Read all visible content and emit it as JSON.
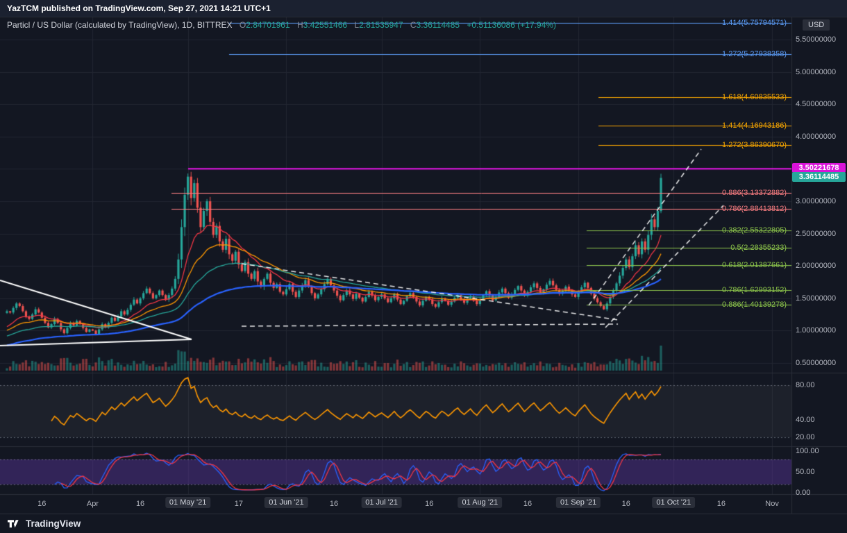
{
  "publish_bar": {
    "text": "YazTCM published on TradingView.com, Sep 27, 2021 14:21 UTC+1"
  },
  "header": {
    "symbol": "Particl / US Dollar (calculated by TradingView), 1D, BITTREX",
    "ohlc": {
      "o_label": "O",
      "o": "2.84701961",
      "h_label": "H",
      "h": "3.42551466",
      "l_label": "L",
      "l": "2.81535947",
      "c_label": "C",
      "c": "3.36114485",
      "change": "+0.51136086 (+17.94%)"
    }
  },
  "price_scale": {
    "currency": "USD",
    "ticks": [
      "5.50000000",
      "5.00000000",
      "4.50000000",
      "4.00000000",
      "3.50000000",
      "3.00000000",
      "2.50000000",
      "2.00000000",
      "1.50000000",
      "1.00000000",
      "0.50000000"
    ],
    "price_tags": [
      {
        "text": "3.50221678",
        "value": 3.50221678,
        "style": "magenta"
      },
      {
        "text": "3.36114485",
        "value": 3.36114485,
        "style": "teal"
      }
    ]
  },
  "fib_levels": [
    {
      "label": "1.414(5.75794571)",
      "value": 5.75794571,
      "group": "blue"
    },
    {
      "label": "1.272(5.27938358)",
      "value": 5.27938358,
      "group": "blue"
    },
    {
      "label": "1.618(4.60835533)",
      "value": 4.60835533,
      "group": "orange"
    },
    {
      "label": "1.414(4.16943186)",
      "value": 4.16943186,
      "group": "orange"
    },
    {
      "label": "1.272(3.86390670)",
      "value": 3.8639067,
      "group": "orange"
    },
    {
      "label": "0.886(3.13372882)",
      "value": 3.13372882,
      "group": "red"
    },
    {
      "label": "0.786(2.88413812)",
      "value": 2.88413812,
      "group": "red"
    },
    {
      "label": "0.382(2.55322805)",
      "value": 2.55322805,
      "group": "green"
    },
    {
      "label": "0.5(2.28355233)",
      "value": 2.28355233,
      "group": "green"
    },
    {
      "label": "0.618(2.01387661)",
      "value": 2.01387661,
      "group": "green"
    },
    {
      "label": "0.786(1.62993152)",
      "value": 1.62993152,
      "group": "green"
    },
    {
      "label": "0.886(1.40139278)",
      "value": 1.40139278,
      "group": "green"
    }
  ],
  "rsi_scale": [
    "80.00",
    "40.00",
    "20.00"
  ],
  "stoch_scale": [
    "100.00",
    "50.00",
    "0.00"
  ],
  "time_axis": {
    "labels": [
      {
        "text": "16",
        "day": 11,
        "boxed": false
      },
      {
        "text": "Apr",
        "day": 27,
        "boxed": false
      },
      {
        "text": "16",
        "day": 42,
        "boxed": false
      },
      {
        "text": "01 May '21",
        "day": 57,
        "boxed": true
      },
      {
        "text": "17",
        "day": 73,
        "boxed": false
      },
      {
        "text": "01 Jun '21",
        "day": 88,
        "boxed": true
      },
      {
        "text": "16",
        "day": 103,
        "boxed": false
      },
      {
        "text": "01 Jul '21",
        "day": 118,
        "boxed": true
      },
      {
        "text": "16",
        "day": 133,
        "boxed": false
      },
      {
        "text": "01 Aug '21",
        "day": 149,
        "boxed": true
      },
      {
        "text": "16",
        "day": 164,
        "boxed": false
      },
      {
        "text": "01 Sep '21",
        "day": 180,
        "boxed": true
      },
      {
        "text": "16",
        "day": 195,
        "boxed": false
      },
      {
        "text": "01 Oct '21",
        "day": 210,
        "boxed": true
      },
      {
        "text": "16",
        "day": 225,
        "boxed": false
      },
      {
        "text": "Nov",
        "day": 241,
        "boxed": false
      }
    ]
  },
  "footer": {
    "brand": "TradingView"
  },
  "colors": {
    "background": "#131722",
    "grid": "#222631",
    "panel_border": "#2a2e39",
    "candle_up": "#26a69a",
    "candle_down": "#ef5350",
    "ma_fast": "#f23645",
    "ma_med": "#ff9800",
    "ma_slow": "#26a69a",
    "ma_long": "#2962ff",
    "rsi": "#ff9800",
    "stoch_k": "#2962ff",
    "stoch_d": "#f23645",
    "fib_blue": "#5b9cf6",
    "fib_orange": "#f7a600",
    "fib_red": "#f77c80",
    "fib_green": "#8bc34a",
    "level_line": "#e816e8",
    "tag_magenta": "#d913d9",
    "tag_teal": "#26a69a",
    "trend_white": "#ffffff"
  },
  "chart_data": {
    "type": "candlestick",
    "title": "Particl / US Dollar",
    "exchange": "BITTREX",
    "timeframe": "1D",
    "currency": "USD",
    "ylim": [
      0.35,
      5.85
    ],
    "x_start_label": "16 Mar '21",
    "x_end_label": "Nov '21",
    "month_days": [
      27,
      57,
      88,
      118,
      149,
      180,
      210,
      241
    ],
    "last_candle": {
      "open": 2.84701961,
      "high": 3.42551466,
      "low": 2.81535947,
      "close": 3.36114485
    },
    "april_peak_high": 3.43,
    "indicators": {
      "rsi_period": 14,
      "stoch": [
        14,
        3,
        3
      ],
      "emas": [
        13,
        25,
        45,
        90
      ]
    },
    "closes": [
      1.3,
      1.28,
      1.35,
      1.42,
      1.38,
      1.3,
      1.22,
      1.18,
      1.25,
      1.33,
      1.28,
      1.2,
      1.12,
      1.05,
      1.1,
      1.18,
      1.12,
      1.02,
      0.96,
      1.04,
      1.12,
      1.08,
      1.15,
      1.1,
      1.04,
      0.98,
      1.02,
      1.0,
      0.95,
      1.02,
      1.1,
      1.05,
      1.12,
      1.2,
      1.15,
      1.22,
      1.3,
      1.25,
      1.32,
      1.4,
      1.48,
      1.42,
      1.5,
      1.58,
      1.65,
      1.58,
      1.5,
      1.55,
      1.62,
      1.55,
      1.48,
      1.55,
      1.65,
      1.8,
      2.1,
      2.6,
      3.1,
      3.38,
      3.05,
      3.28,
      2.9,
      2.6,
      2.85,
      3.0,
      2.68,
      2.48,
      2.62,
      2.38,
      2.25,
      2.42,
      2.18,
      2.08,
      2.22,
      2.02,
      1.92,
      2.06,
      1.88,
      1.8,
      1.92,
      1.76,
      1.68,
      1.8,
      1.88,
      1.74,
      1.66,
      1.72,
      1.6,
      1.56,
      1.64,
      1.72,
      1.6,
      1.52,
      1.62,
      1.7,
      1.78,
      1.68,
      1.58,
      1.5,
      1.56,
      1.64,
      1.72,
      1.8,
      1.7,
      1.62,
      1.54,
      1.47,
      1.55,
      1.62,
      1.56,
      1.49,
      1.57,
      1.51,
      1.45,
      1.52,
      1.6,
      1.54,
      1.47,
      1.52,
      1.56,
      1.5,
      1.44,
      1.5,
      1.57,
      1.48,
      1.41,
      1.46,
      1.53,
      1.58,
      1.52,
      1.45,
      1.39,
      1.46,
      1.52,
      1.48,
      1.41,
      1.37,
      1.44,
      1.5,
      1.46,
      1.4,
      1.45,
      1.51,
      1.55,
      1.48,
      1.43,
      1.48,
      1.53,
      1.46,
      1.41,
      1.48,
      1.55,
      1.61,
      1.54,
      1.47,
      1.52,
      1.59,
      1.65,
      1.58,
      1.51,
      1.56,
      1.63,
      1.69,
      1.62,
      1.54,
      1.6,
      1.67,
      1.73,
      1.66,
      1.59,
      1.64,
      1.71,
      1.77,
      1.7,
      1.63,
      1.57,
      1.62,
      1.68,
      1.62,
      1.56,
      1.52,
      1.6,
      1.67,
      1.74,
      1.66,
      1.57,
      1.5,
      1.44,
      1.38,
      1.33,
      1.42,
      1.52,
      1.62,
      1.73,
      1.85,
      1.97,
      2.1,
      1.98,
      2.15,
      2.32,
      2.18,
      2.38,
      2.25,
      2.48,
      2.72,
      2.6,
      2.85,
      3.36114485
    ]
  }
}
